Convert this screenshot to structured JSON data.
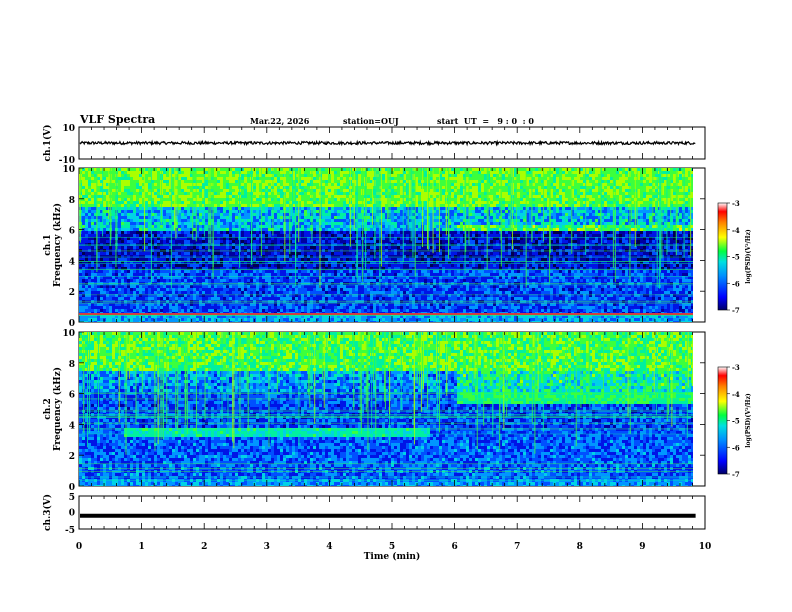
{
  "header": {
    "title": "VLF Spectra",
    "date": "Mar.22, 2026",
    "station": "station=OUJ",
    "start": "start  UT  =   9 : 0  : 0"
  },
  "chart_data": [
    {
      "type": "line",
      "ylabel": "ch.1(V)",
      "xlim": [
        0,
        10
      ],
      "ylim": [
        -10,
        10
      ],
      "yticks": [
        "10",
        "-10"
      ],
      "series": [
        {
          "values_desc": [],
          "mean": 0,
          "amplitude": 0.6
        }
      ]
    },
    {
      "type": "heatmap",
      "ylabel_lines": [
        "ch.1",
        "Frequency (kHz)"
      ],
      "xlim": [
        0,
        10
      ],
      "ylim": [
        0,
        10
      ],
      "yticks": [
        "10",
        "8",
        "6",
        "4",
        "2",
        "0"
      ],
      "colorbar": {
        "label": "log(PSD)(V²/Hz)",
        "ticks": [
          "-3",
          "-4",
          "-5",
          "-6",
          "-7"
        ],
        "range": [
          -7,
          -3
        ]
      }
    },
    {
      "type": "heatmap",
      "ylabel_lines": [
        "ch.2",
        "Frequency (kHz)"
      ],
      "xlim": [
        0,
        10
      ],
      "ylim": [
        0,
        10
      ],
      "yticks": [
        "10",
        "8",
        "6",
        "4",
        "2",
        "0"
      ],
      "colorbar": {
        "label": "log(PSD)(V²/Hz)",
        "ticks": [
          "-3",
          "-4",
          "-5",
          "-6",
          "-7"
        ],
        "range": [
          -7,
          -3
        ]
      }
    },
    {
      "type": "line",
      "ylabel": "ch.3(V)",
      "xlabel": "Time  (min)",
      "xlim": [
        0,
        10
      ],
      "ylim": [
        -5,
        5
      ],
      "yticks": [
        "5",
        "0",
        "-5"
      ],
      "xticks": [
        "0",
        "1",
        "2",
        "3",
        "4",
        "5",
        "6",
        "7",
        "8",
        "9",
        "10"
      ],
      "series": [
        {
          "constant": -1.0
        }
      ]
    }
  ]
}
